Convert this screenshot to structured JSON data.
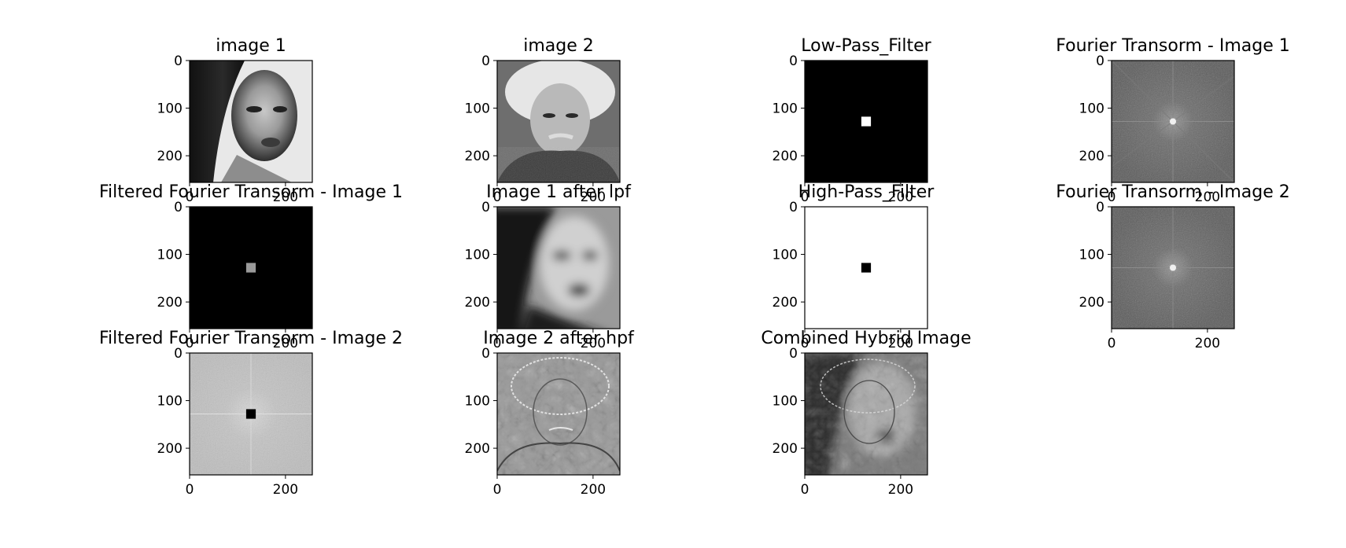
{
  "chart_data": [
    {
      "type": "image",
      "title": "image 1",
      "content": "grayscale portrait of a woman",
      "xlim": [
        0,
        256
      ],
      "ylim": [
        256,
        0
      ],
      "xticks": [
        0,
        200
      ],
      "yticks": [
        0,
        100,
        200
      ],
      "show_xticks": false
    },
    {
      "type": "image",
      "title": "image 2",
      "content": "grayscale portrait of Albert Einstein",
      "xlim": [
        0,
        256
      ],
      "ylim": [
        256,
        0
      ],
      "xticks": [
        0,
        200
      ],
      "yticks": [
        0,
        100,
        200
      ],
      "show_xticks": false
    },
    {
      "type": "image",
      "title": "Low-Pass_Filter",
      "content": "black field with small white square at center",
      "mask": {
        "center": [
          128,
          128
        ],
        "half_size": 10,
        "fg": "#ffffff",
        "bg": "#000000"
      },
      "xlim": [
        0,
        256
      ],
      "ylim": [
        256,
        0
      ],
      "xticks": [
        0,
        200
      ],
      "yticks": [
        0,
        100,
        200
      ],
      "show_xticks": false
    },
    {
      "type": "image",
      "title": "Fourier Transorm - Image 1",
      "content": "log magnitude spectrum, gray noise with bright center",
      "xlim": [
        0,
        256
      ],
      "ylim": [
        256,
        0
      ],
      "xticks": [
        0,
        200
      ],
      "yticks": [
        0,
        100,
        200
      ],
      "show_xticks": false
    },
    {
      "type": "image",
      "title": "Filtered Fourier Transorm - Image 1",
      "content": "black field with small gray square at center",
      "mask": {
        "center": [
          128,
          128
        ],
        "half_size": 10,
        "fg": "#9a9a9a",
        "bg": "#000000"
      },
      "xlim": [
        0,
        256
      ],
      "ylim": [
        256,
        0
      ],
      "xticks": [
        0,
        200
      ],
      "yticks": [
        0,
        100,
        200
      ],
      "show_xticks": true
    },
    {
      "type": "image",
      "title": "Image 1 after lpf",
      "content": "blurred portrait of a woman",
      "xlim": [
        0,
        256
      ],
      "ylim": [
        256,
        0
      ],
      "xticks": [
        0,
        200
      ],
      "yticks": [
        0,
        100,
        200
      ],
      "show_xticks": true
    },
    {
      "type": "image",
      "title": "High-Pass_Filter",
      "content": "white field with small black square at center",
      "mask": {
        "center": [
          128,
          128
        ],
        "half_size": 10,
        "fg": "#000000",
        "bg": "#ffffff"
      },
      "xlim": [
        0,
        256
      ],
      "ylim": [
        256,
        0
      ],
      "xticks": [
        0,
        200
      ],
      "yticks": [
        0,
        100,
        200
      ],
      "show_xticks": true
    },
    {
      "type": "image",
      "title": "Fourier Transorm - Image 2",
      "content": "log magnitude spectrum, gray noise with bright center",
      "xlim": [
        0,
        256
      ],
      "ylim": [
        256,
        0
      ],
      "xticks": [
        0,
        200
      ],
      "yticks": [
        0,
        100,
        200
      ],
      "show_xticks": true
    },
    {
      "type": "image",
      "title": "Filtered Fourier Transorm - Image 2",
      "content": "light gray spectrum with black square at center",
      "mask": {
        "center": [
          128,
          128
        ],
        "half_size": 10,
        "fg": "#000000",
        "bg": "#c9c9c9"
      },
      "xlim": [
        0,
        256
      ],
      "ylim": [
        256,
        0
      ],
      "xticks": [
        0,
        200
      ],
      "yticks": [
        0,
        100,
        200
      ],
      "show_xticks": true
    },
    {
      "type": "image",
      "title": "Image 2 after hpf",
      "content": "edge-detail (high-pass) portrait of Einstein on gray",
      "xlim": [
        0,
        256
      ],
      "ylim": [
        256,
        0
      ],
      "xticks": [
        0,
        200
      ],
      "yticks": [
        0,
        100,
        200
      ],
      "show_xticks": true
    },
    {
      "type": "image",
      "title": "Combined Hybrid Image",
      "content": "hybrid of blurred woman and edge-detail Einstein",
      "xlim": [
        0,
        256
      ],
      "ylim": [
        256,
        0
      ],
      "xticks": [
        0,
        200
      ],
      "yticks": [
        0,
        100,
        200
      ],
      "show_xticks": true
    }
  ]
}
